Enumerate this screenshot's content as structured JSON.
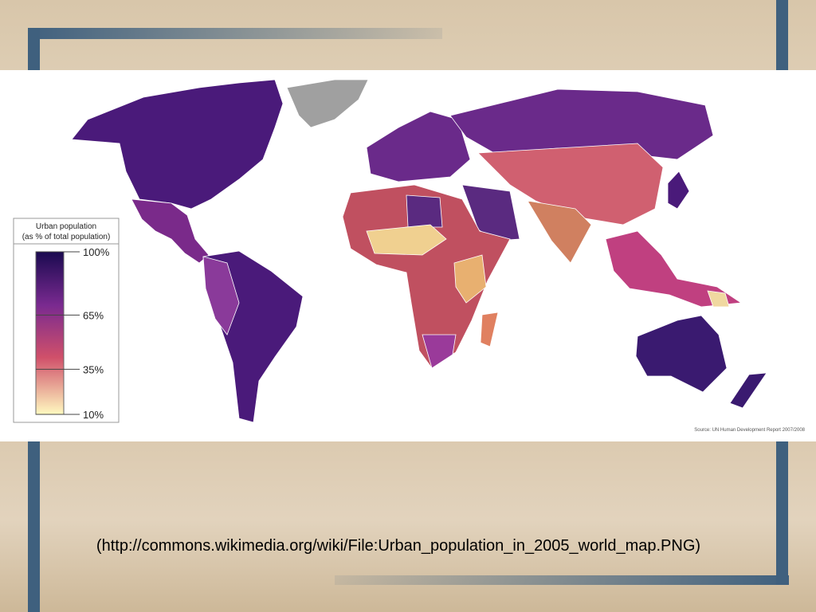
{
  "map": {
    "legend": {
      "title_line1": "Urban population",
      "title_line2": "(as % of total population)",
      "ticks": [
        {
          "value": 100,
          "label": "100%"
        },
        {
          "value": 65,
          "label": "65%"
        },
        {
          "value": 35,
          "label": "35%"
        },
        {
          "value": 10,
          "label": "10%"
        }
      ]
    },
    "source": "Source: UN Human Development Report 2007/2008"
  },
  "caption": "(http://commons.wikimedia.org/wiki/File:Urban_population_in_2005_world_map.PNG)"
}
